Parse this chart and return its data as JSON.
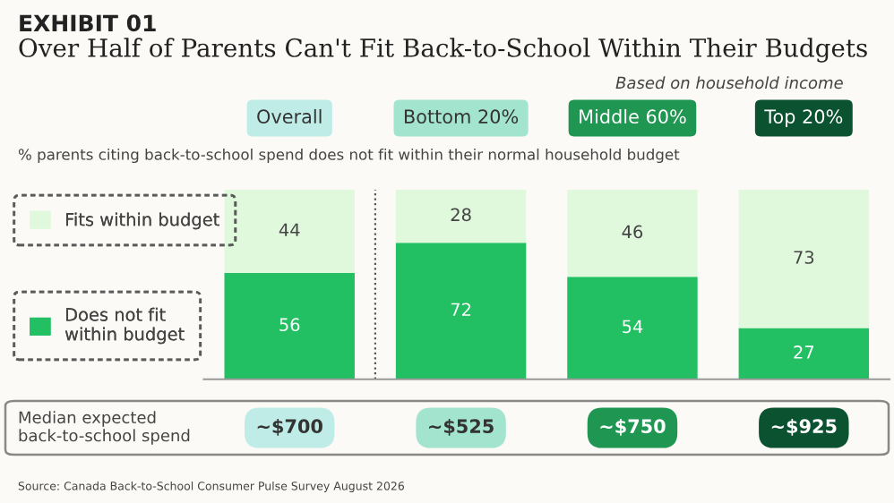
{
  "chart_data": {
    "type": "bar",
    "stacked": true,
    "data_labels": true,
    "legend": "left",
    "grid": false,
    "title": "Over Half of Parents Can't Fit Back-to-School Within Their Budgets",
    "categories": [
      "Overall",
      "Bottom 20%",
      "Middle 60%",
      "Top 20%"
    ],
    "series": [
      {
        "name": "Does not fit within budget",
        "color": "#22c063",
        "values": [
          56,
          72,
          54,
          27
        ]
      },
      {
        "name": "Fits within budget",
        "color": "#e0f9dd",
        "values": [
          44,
          28,
          46,
          73
        ]
      }
    ],
    "annotations": [
      "EXHIBIT 01",
      "Based on household income",
      "% parents citing back-to-school spend does not fit within their normal household budget",
      "Median expected back-to-school spend",
      "~$700",
      "~$525",
      "~$750",
      "~$925",
      "Source: Canada Back-to-School Consumer Pulse Survey August 2026"
    ]
  }
}
